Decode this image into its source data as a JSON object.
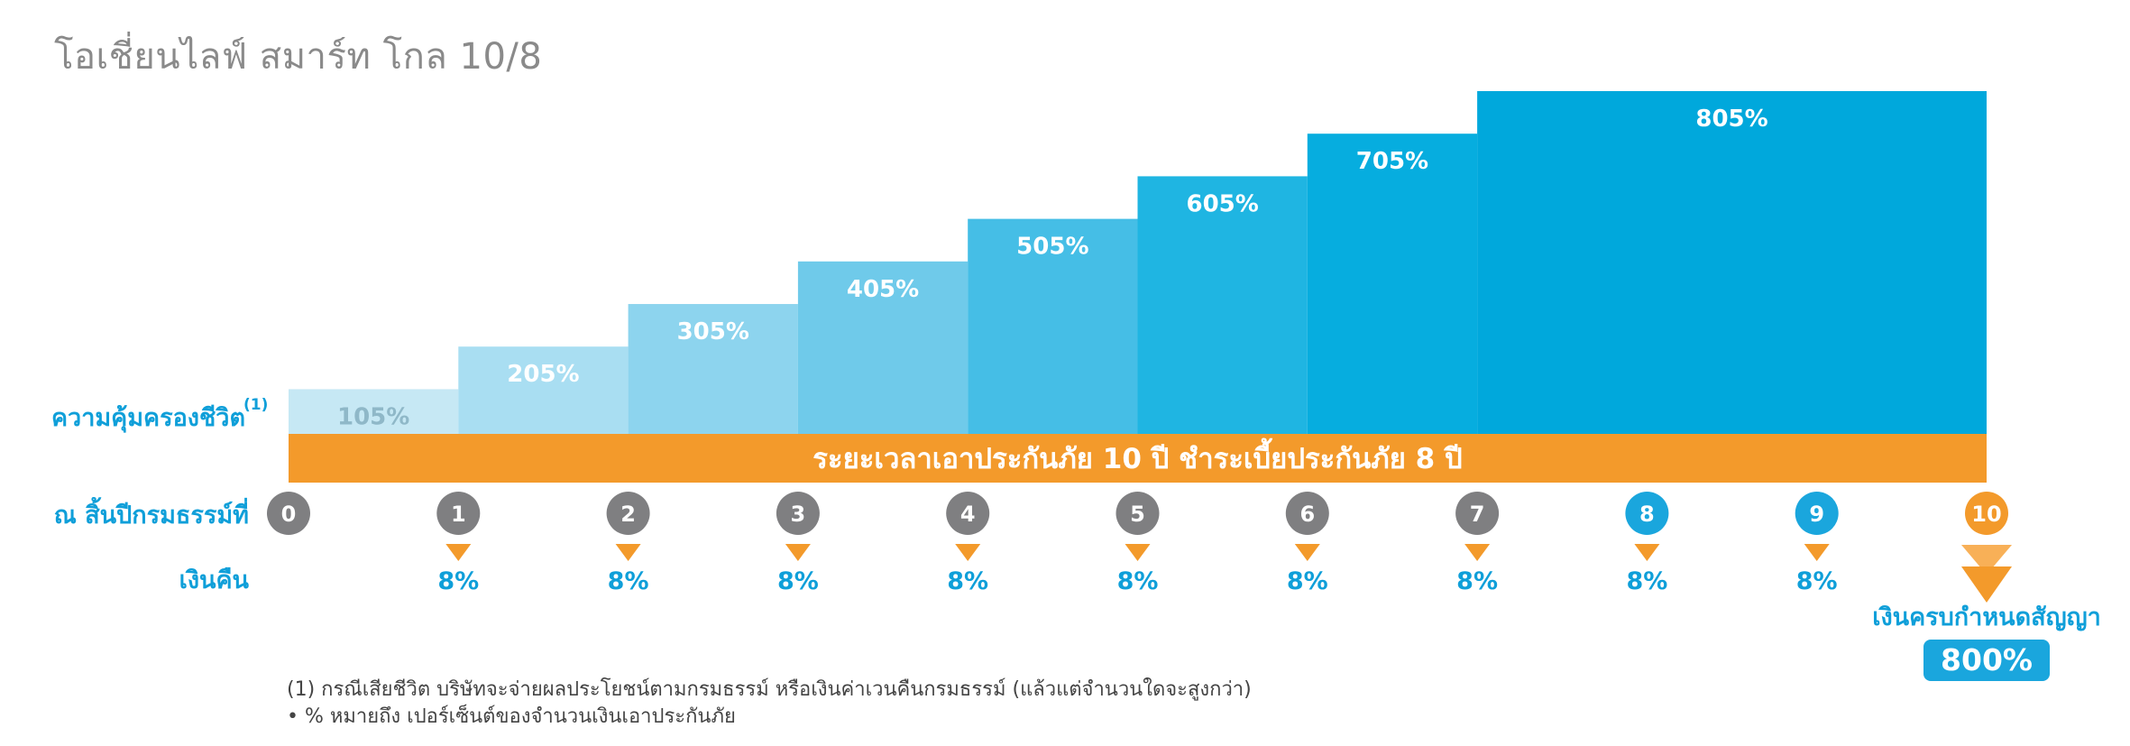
{
  "title": "โอเชี่ยนไลฟ์ สมาร์ท โกล 10/8",
  "colors": {
    "bars": [
      "#c6e8f4",
      "#a9def2",
      "#8dd4ee",
      "#6fcaea",
      "#45bee6",
      "#1fb5e2",
      "#06addf",
      "#00a8dc"
    ],
    "orange": "#f39a2b",
    "gray_circle": "#7f7f81",
    "blue_circle": "#1aa6dd",
    "label_blue": "#0f9fd9",
    "bar_label_light": "#ffffff"
  },
  "row_labels": {
    "coverage": "ความคุ้มครองชีวิต",
    "coverage_sup": "(1)",
    "year_end": "ณ สิ้นปีกรมธรรม์ที่",
    "cashback": "เงินคืน"
  },
  "banner": "ระยะเวลาเอาประกันภัย 10 ปี ชำระเบี้ยประกันภัย 8 ปี",
  "years": [
    "0",
    "1",
    "2",
    "3",
    "4",
    "5",
    "6",
    "7",
    "8",
    "9",
    "10"
  ],
  "year_circle_style": [
    "gray",
    "gray",
    "gray",
    "gray",
    "gray",
    "gray",
    "gray",
    "gray",
    "blue",
    "blue",
    "orange"
  ],
  "maturity": {
    "label": "เงินครบกำหนดสัญญา",
    "value": "800%"
  },
  "footnotes": [
    "(1)  กรณีเสียชีวิต บริษัทจะจ่ายผลประโยชน์ตามกรมธรรม์ หรือเงินค่าเวนคืนกรมธรรม์ (แล้วแต่จำนวนใดจะสูงกว่า)",
    "• % หมายถึง เปอร์เซ็นต์ของจำนวนเงินเอาประกันภัย"
  ],
  "chart_data": {
    "type": "bar",
    "categories": [
      "0-1",
      "1-2",
      "2-3",
      "3-4",
      "4-5",
      "5-6",
      "6-7",
      "7-10"
    ],
    "values": [
      105,
      205,
      305,
      405,
      505,
      605,
      705,
      805
    ],
    "labels": [
      "105%",
      "205%",
      "305%",
      "405%",
      "505%",
      "605%",
      "705%",
      "805%"
    ],
    "bar_start_year": [
      0,
      1,
      2,
      3,
      4,
      5,
      6,
      7
    ],
    "bar_end_year": [
      1,
      2,
      3,
      4,
      5,
      6,
      7,
      10
    ],
    "ylim": [
      0,
      805
    ],
    "cashback_years": [
      "1",
      "2",
      "3",
      "4",
      "5",
      "6",
      "7",
      "8",
      "9"
    ],
    "cashback_values": [
      8,
      8,
      8,
      8,
      8,
      8,
      8,
      8,
      8
    ],
    "cashback_labels": [
      "8%",
      "8%",
      "8%",
      "8%",
      "8%",
      "8%",
      "8%",
      "8%",
      "8%"
    ],
    "maturity_value": 800
  }
}
